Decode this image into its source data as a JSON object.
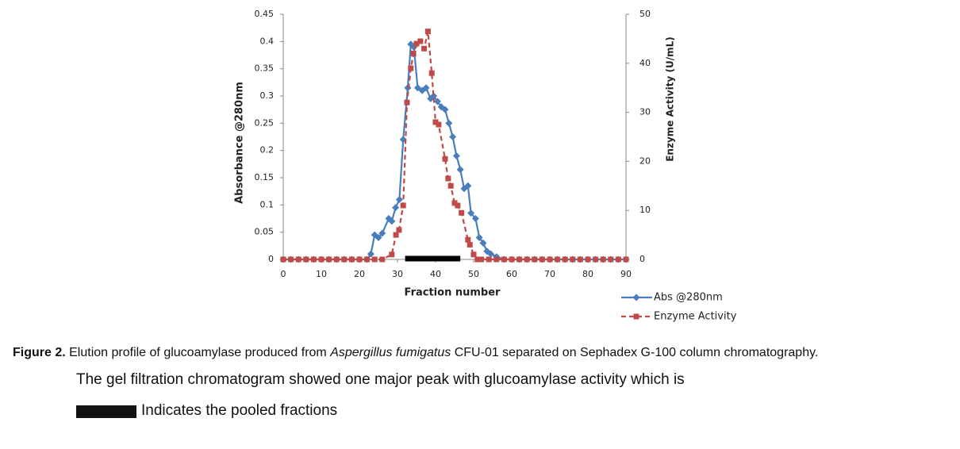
{
  "chart_data": {
    "type": "line",
    "xlabel": "Fraction number",
    "ylabel": "Absorbance @280nm",
    "y2label": "Enzyme Activity (U/mL)",
    "xlim": [
      0,
      90
    ],
    "xticks": [
      0,
      10,
      20,
      30,
      40,
      50,
      60,
      70,
      80,
      90
    ],
    "ylim": [
      0,
      0.45
    ],
    "yticks": [
      0,
      0.05,
      0.1,
      0.15,
      0.2,
      0.25,
      0.3,
      0.35,
      0.4,
      0.45
    ],
    "y2lim": [
      0,
      50
    ],
    "y2ticks": [
      0,
      10,
      20,
      30,
      40,
      50
    ],
    "pooled_fractions": [
      32,
      46.5
    ],
    "series": [
      {
        "name": "Abs @280nm",
        "color": "#4a7ebb",
        "marker": "diamond",
        "line_style": "solid",
        "x": [
          0,
          2,
          4,
          6,
          8,
          10,
          12,
          14,
          16,
          18,
          20,
          22,
          23,
          24,
          25,
          26,
          27.7,
          28.5,
          29.5,
          30.5,
          31.5,
          32.7,
          33.5,
          34.3,
          35.3,
          36.5,
          37.5,
          38.7,
          39.5,
          40.5,
          41.5,
          42.5,
          43.5,
          44.5,
          45.5,
          46.5,
          47.5,
          48.5,
          49.3,
          50.5,
          51.5,
          52.5,
          53.5,
          54.5,
          56,
          58,
          60,
          62,
          64,
          66,
          68,
          70,
          72,
          74,
          76,
          78,
          80,
          82,
          84,
          86,
          88,
          90
        ],
        "values": [
          0,
          0,
          0,
          0,
          0,
          0,
          0,
          0,
          0,
          0,
          0,
          0,
          0.01,
          0.045,
          0.04,
          0.048,
          0.075,
          0.07,
          0.095,
          0.11,
          0.22,
          0.315,
          0.395,
          0.39,
          0.315,
          0.31,
          0.315,
          0.295,
          0.3,
          0.29,
          0.28,
          0.275,
          0.25,
          0.225,
          0.19,
          0.165,
          0.13,
          0.135,
          0.085,
          0.075,
          0.04,
          0.03,
          0.015,
          0.01,
          0.005,
          0,
          0,
          0,
          0,
          0,
          0,
          0,
          0,
          0,
          0,
          0,
          0,
          0,
          0,
          0,
          0,
          0
        ]
      },
      {
        "name": "Enzyme Activity",
        "color": "#be4b48",
        "marker": "square",
        "line_style": "dashed",
        "axis": "y2",
        "x": [
          0,
          2,
          4,
          6,
          8,
          10,
          12,
          14,
          16,
          18,
          20,
          22,
          24,
          26,
          28.5,
          29.6,
          30.4,
          31.5,
          32.5,
          33.5,
          34.2,
          35,
          36,
          37,
          38,
          39,
          40,
          40.8,
          42.5,
          43.3,
          44,
          45,
          45.8,
          46.8,
          48.5,
          49,
          50,
          51,
          52,
          54,
          56,
          58,
          60,
          62,
          64,
          66,
          68,
          70,
          72,
          74,
          76,
          78,
          80,
          82,
          84,
          86,
          88,
          90
        ],
        "values": [
          0,
          0,
          0,
          0,
          0,
          0,
          0,
          0,
          0,
          0,
          0,
          0,
          0,
          0,
          1,
          5,
          6,
          11,
          32,
          39,
          42,
          44,
          44.5,
          43,
          46.5,
          38,
          28,
          27.5,
          20.5,
          16.5,
          15,
          11.5,
          11,
          9.5,
          4,
          3,
          1,
          0,
          0,
          0,
          0,
          0,
          0,
          0,
          0,
          0,
          0,
          0,
          0,
          0,
          0,
          0,
          0,
          0,
          0,
          0,
          0,
          0
        ]
      }
    ]
  },
  "caption": {
    "label": "Figure 2.",
    "text_before": " Elution profile of glucoamylase produced from ",
    "italic": "Aspergillus fumigatus",
    "text_after": " CFU-01 separated on Sephadex G-100 column chromatography.",
    "line2": "The gel filtration chromatogram showed one major peak with glucoamylase activity which is",
    "line3": "Indicates the pooled fractions"
  }
}
